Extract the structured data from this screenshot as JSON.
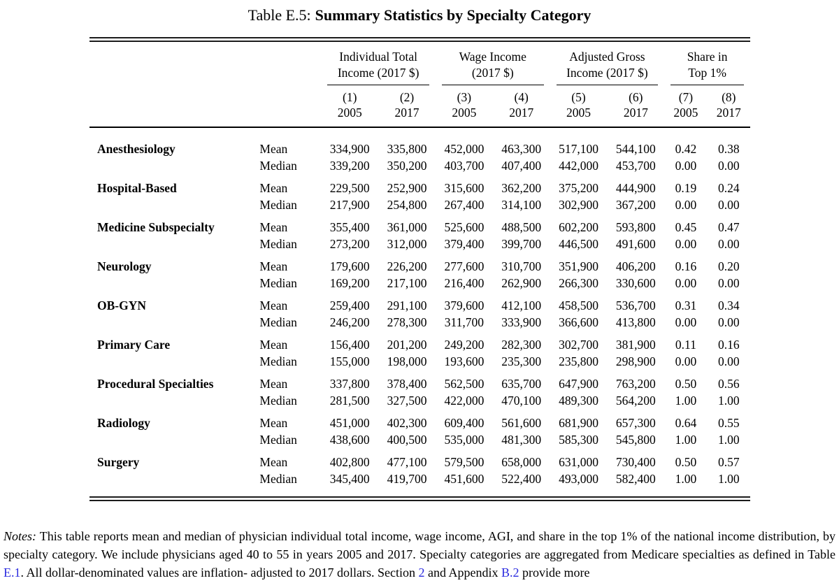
{
  "caption": {
    "prefix": "Table E.5:",
    "title": "Summary Statistics by Specialty Category"
  },
  "table": {
    "groups": [
      {
        "line1": "Individual Total",
        "line2": "Income (2017 $)"
      },
      {
        "line1": "Wage Income",
        "line2": "(2017 $)"
      },
      {
        "line1": "Adjusted Gross",
        "line2": "Income (2017 $)"
      },
      {
        "line1": "Share in",
        "line2": "Top 1%"
      }
    ],
    "col_numbers": [
      "(1)",
      "(2)",
      "(3)",
      "(4)",
      "(5)",
      "(6)",
      "(7)",
      "(8)"
    ],
    "col_years": [
      "2005",
      "2017",
      "2005",
      "2017",
      "2005",
      "2017",
      "2005",
      "2017"
    ],
    "stat_labels": {
      "mean": "Mean",
      "median": "Median"
    },
    "rows": [
      {
        "specialty": "Anesthesiology",
        "mean": [
          "334,900",
          "335,800",
          "452,000",
          "463,300",
          "517,100",
          "544,100",
          "0.42",
          "0.38"
        ],
        "median": [
          "339,200",
          "350,200",
          "403,700",
          "407,400",
          "442,000",
          "453,700",
          "0.00",
          "0.00"
        ]
      },
      {
        "specialty": "Hospital-Based",
        "mean": [
          "229,500",
          "252,900",
          "315,600",
          "362,200",
          "375,200",
          "444,900",
          "0.19",
          "0.24"
        ],
        "median": [
          "217,900",
          "254,800",
          "267,400",
          "314,100",
          "302,900",
          "367,200",
          "0.00",
          "0.00"
        ]
      },
      {
        "specialty": "Medicine Subspecialty",
        "mean": [
          "355,400",
          "361,000",
          "525,600",
          "488,500",
          "602,200",
          "593,800",
          "0.45",
          "0.47"
        ],
        "median": [
          "273,200",
          "312,000",
          "379,400",
          "399,700",
          "446,500",
          "491,600",
          "0.00",
          "0.00"
        ]
      },
      {
        "specialty": "Neurology",
        "mean": [
          "179,600",
          "226,200",
          "277,600",
          "310,700",
          "351,900",
          "406,200",
          "0.16",
          "0.20"
        ],
        "median": [
          "169,200",
          "217,100",
          "216,400",
          "262,900",
          "266,300",
          "330,600",
          "0.00",
          "0.00"
        ]
      },
      {
        "specialty": "OB-GYN",
        "mean": [
          "259,400",
          "291,100",
          "379,600",
          "412,100",
          "458,500",
          "536,700",
          "0.31",
          "0.34"
        ],
        "median": [
          "246,200",
          "278,300",
          "311,700",
          "333,900",
          "366,600",
          "413,800",
          "0.00",
          "0.00"
        ]
      },
      {
        "specialty": "Primary Care",
        "mean": [
          "156,400",
          "201,200",
          "249,200",
          "282,300",
          "302,700",
          "381,900",
          "0.11",
          "0.16"
        ],
        "median": [
          "155,000",
          "198,000",
          "193,600",
          "235,300",
          "235,800",
          "298,900",
          "0.00",
          "0.00"
        ]
      },
      {
        "specialty": "Procedural Specialties",
        "mean": [
          "337,800",
          "378,400",
          "562,500",
          "635,700",
          "647,900",
          "763,200",
          "0.50",
          "0.56"
        ],
        "median": [
          "281,500",
          "327,500",
          "422,000",
          "470,100",
          "489,300",
          "564,200",
          "1.00",
          "1.00"
        ]
      },
      {
        "specialty": "Radiology",
        "mean": [
          "451,000",
          "402,300",
          "609,400",
          "561,600",
          "681,900",
          "657,300",
          "0.64",
          "0.55"
        ],
        "median": [
          "438,600",
          "400,500",
          "535,000",
          "481,300",
          "585,300",
          "545,800",
          "1.00",
          "1.00"
        ]
      },
      {
        "specialty": "Surgery",
        "mean": [
          "402,800",
          "477,100",
          "579,500",
          "658,000",
          "631,000",
          "730,400",
          "0.50",
          "0.57"
        ],
        "median": [
          "345,400",
          "419,700",
          "451,600",
          "522,400",
          "493,000",
          "582,400",
          "1.00",
          "1.00"
        ]
      }
    ]
  },
  "notes": {
    "label": "Notes:",
    "seg1": " This table reports mean and median of physician individual total income, wage income, AGI, and share in the top 1% of the national income distribution, by specialty category. We include physicians aged 40 to 55 in years 2005 and 2017. Specialty categories are aggregated from Medicare specialties as defined in Table ",
    "ref_table": "E.1",
    "seg2": ". All dollar-denominated values are inflation- adjusted to 2017 dollars. Section ",
    "ref_section": "2",
    "seg3": " and Appendix ",
    "ref_appendix": "B.2",
    "seg4": " provide more"
  },
  "colors": {
    "text": "#000000",
    "link": "#2b2bdf",
    "rule": "#1c1c1c"
  }
}
